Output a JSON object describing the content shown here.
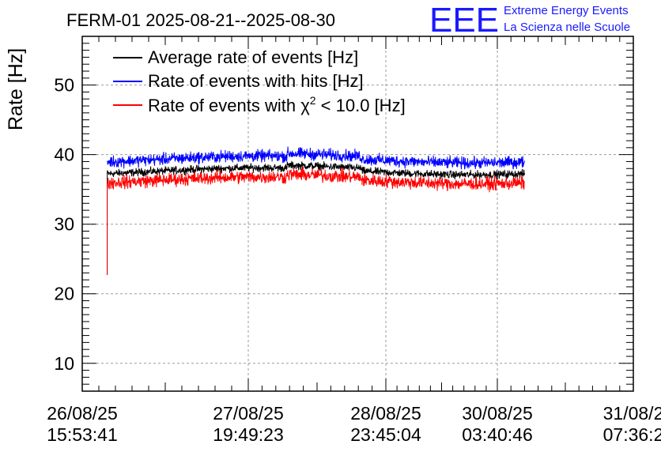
{
  "chart_data": {
    "type": "line",
    "title": "FERM-01 2025-08-21--2025-08-30",
    "xlabel": "",
    "ylabel": "Rate [Hz]",
    "ylim": [
      6,
      57
    ],
    "yticks": [
      10,
      20,
      30,
      40,
      50
    ],
    "x_ticks": [
      {
        "date": "26/08/25",
        "time": "15:53:41"
      },
      {
        "date": "27/08/25",
        "time": "19:49:23"
      },
      {
        "date": "28/08/25",
        "time": "23:45:04"
      },
      {
        "date": "30/08/25",
        "time": "03:40:46"
      },
      {
        "date": "31/08/2",
        "time": "07:36:2"
      }
    ],
    "x_range_hours": [
      0,
      148
    ],
    "grid": true,
    "legend_position": "top-left",
    "series": [
      {
        "name": "Average rate of events [Hz]",
        "color": "#000000",
        "start_hours": 6.7,
        "end_hours": 118.8,
        "start_value": 22.7,
        "mean": 37.6,
        "noise": 0.6
      },
      {
        "name": "Rate of events with hits [Hz]",
        "color": "#0000ff",
        "start_hours": 6.7,
        "end_hours": 118.8,
        "mean": 39.3,
        "noise": 0.9,
        "min": 37.8,
        "max": 41.7
      },
      {
        "name": "Rate of events with χ² < 10.0 [Hz]",
        "color": "#ff0000",
        "start_hours": 6.7,
        "end_hours": 118.8,
        "start_value": 22.7,
        "mean": 36.3,
        "noise": 1.0,
        "min": 33.8,
        "max": 38.9
      }
    ],
    "legend_labels": {
      "avg": "Average rate of events [Hz]",
      "hits": "Rate of events with hits [Hz]",
      "chi_prefix": "Rate of events with χ",
      "chi_sup": "2",
      "chi_suffix": " < 10.0 [Hz]"
    }
  },
  "logo": {
    "big": "EEE",
    "line1": "Extreme Energy Events",
    "line2": "La Scienza nelle Scuole"
  },
  "colors": {
    "avg": "#000000",
    "hits": "#0000ff",
    "chi": "#ff0000",
    "logo": "#1a1aff"
  }
}
